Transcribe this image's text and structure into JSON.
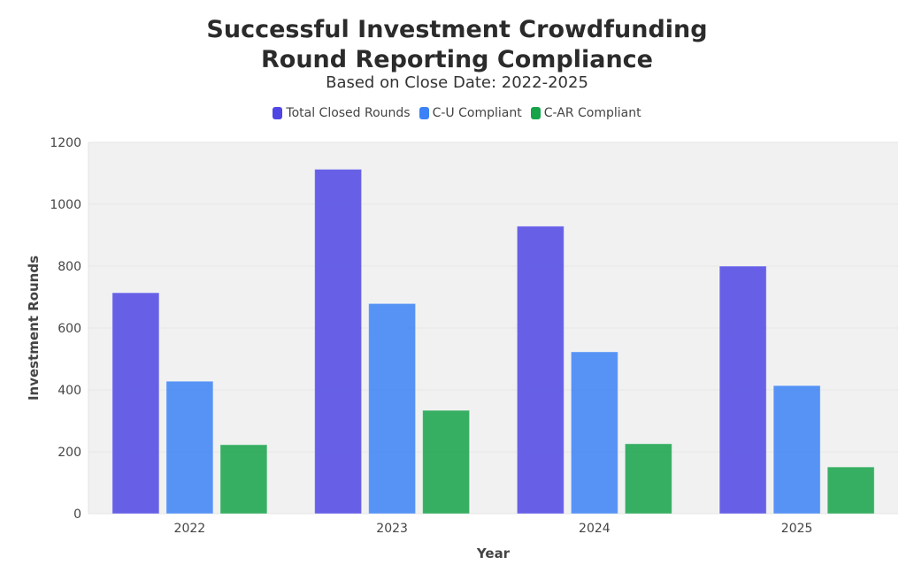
{
  "chart_data": {
    "type": "bar",
    "title": "Successful Investment Crowdfunding Round Reporting Compliance",
    "title_lines": [
      "Successful Investment Crowdfunding",
      "Round Reporting Compliance"
    ],
    "subtitle": "Based on Close Date: 2022-2025",
    "xlabel": "Year",
    "ylabel": "Investment Rounds",
    "categories": [
      "2022",
      "2023",
      "2024",
      "2025"
    ],
    "series": [
      {
        "name": "Total Closed Rounds",
        "color": "#4f46e5",
        "values": [
          714,
          1113,
          929,
          800
        ]
      },
      {
        "name": "C-U Compliant",
        "color": "#3b82f6",
        "values": [
          428,
          679,
          523,
          414
        ]
      },
      {
        "name": "C-AR Compliant",
        "color": "#16a34a",
        "values": [
          223,
          334,
          226,
          151
        ]
      }
    ],
    "ylim": [
      0,
      1200
    ],
    "yticks": [
      0,
      200,
      400,
      600,
      800,
      1000,
      1200
    ],
    "grid": true,
    "legend_position": "top",
    "plot_background": "#f1f1f1"
  }
}
